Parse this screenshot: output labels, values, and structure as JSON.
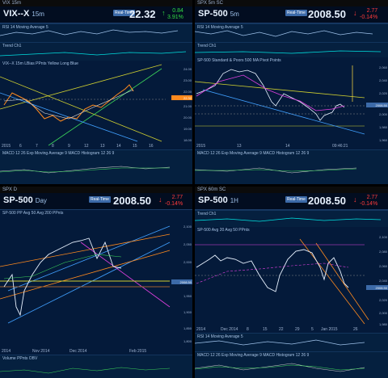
{
  "panes": {
    "vix": {
      "titlebar": "VIX 15m",
      "symbol": "VIX--X",
      "timeframe": "15m",
      "realtime": "Real-Time",
      "price": "22.32",
      "change": "0.84",
      "change_pct": "3.91%",
      "ind1_label": "RSI 14  Moving Average 5",
      "ind2_label": "Trend  Ch1",
      "legend": "VIX--X 15m  LBias  PPnts  Yellow  Long Blue",
      "macd_label": "MACD 12 26  Exp Moving Average 9  MACD Histogram 12 26 9",
      "x_labels": [
        "2015",
        "6",
        "7",
        "8",
        "9",
        "12",
        "13",
        "14",
        "15",
        "16"
      ],
      "y_labels": [
        "24.00",
        "23.00",
        "22.00",
        "21.00",
        "20.00",
        "19.00",
        "18.00"
      ],
      "price_tag": "22.32"
    },
    "spx5": {
      "titlebar": "SPX 5m SC",
      "symbol": "SP-500",
      "timeframe": "5m",
      "realtime": "Real-Time",
      "price": "2008.50",
      "change": "2.77",
      "change_pct": "-0.14%",
      "ind1_label": "RSI 14  Moving Average 5",
      "ind2_label": "Trend  Ch1",
      "legend": "SP-500 Standard & Poors 500  MA  Pivot Points",
      "macd_label": "MACD 12 26  Exp Moving Average 9  MACD Histogram 12 26 9",
      "x_labels": [
        "2015",
        "13",
        "14",
        "09:46:21"
      ],
      "y_labels": [
        "2,060",
        "2,040",
        "2,020",
        "2,000",
        "1,980",
        "1,960"
      ],
      "price_tag": "2008.50"
    },
    "spxd": {
      "titlebar": "SPX D",
      "symbol": "SP-500",
      "timeframe": "Day",
      "realtime": "Real-Time",
      "price": "2008.50",
      "change": "2.77",
      "change_pct": "-0.14%",
      "ind1_label": "SP-500  PP  Avg 50  Avg 200  PPnts",
      "macd_label": "Volume  PPnts  OBV",
      "x_labels": [
        "2014",
        "Nov 2014",
        "Dec 2014",
        "Feb 2015"
      ],
      "y_labels": [
        "2,100",
        "2,050",
        "2,000",
        "1,950",
        "1,900",
        "1,850",
        "1,800"
      ],
      "price_tag": "2008.50"
    },
    "spx1h": {
      "titlebar": "SPX 60m SC",
      "symbol": "SP-500",
      "timeframe": "1H",
      "realtime": "Real-Time",
      "price": "2008.50",
      "change": "2.77",
      "change_pct": "-0.14%",
      "ind1_label": "Trend  Ch1",
      "legend": "SP-500  Avg 20  Avg 50  PPnts",
      "ind2_label": "RSI 14  Moving Average 5",
      "macd_label": "MACD 12 26  Exp Moving Average 9  MACD Histogram 12 26 9",
      "x_labels": [
        "2014",
        "Dec 2014",
        "8",
        "15",
        "22",
        "29",
        "5",
        "Jan 2015",
        "26"
      ],
      "y_labels": [
        "2,100",
        "2,080",
        "2,060",
        "2,040",
        "2,020",
        "2,000",
        "1,980"
      ],
      "price_tag": "2008.50"
    }
  },
  "colors": {
    "up": "#33dd44",
    "down": "#ff3b3b",
    "background": "#041a3a"
  }
}
